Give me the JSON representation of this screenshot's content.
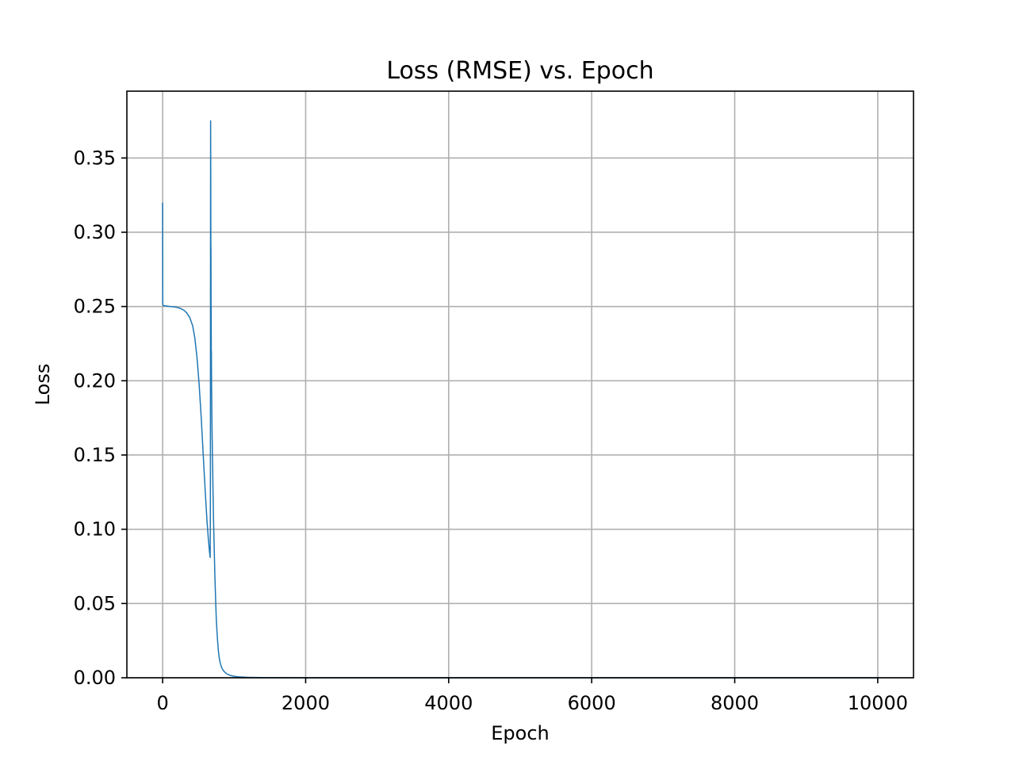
{
  "chart_data": {
    "type": "line",
    "title": "Loss (RMSE) vs. Epoch",
    "xlabel": "Epoch",
    "ylabel": "Loss",
    "xlim": [
      -500,
      10500
    ],
    "ylim": [
      0.0,
      0.395
    ],
    "xticks": [
      0,
      2000,
      4000,
      6000,
      8000,
      10000
    ],
    "xtick_labels": [
      "0",
      "2000",
      "4000",
      "6000",
      "8000",
      "10000"
    ],
    "yticks": [
      0.0,
      0.05,
      0.1,
      0.15,
      0.2,
      0.25,
      0.3,
      0.35
    ],
    "ytick_labels": [
      "0.00",
      "0.05",
      "0.10",
      "0.15",
      "0.20",
      "0.25",
      "0.30",
      "0.35"
    ],
    "grid": true,
    "series": [
      {
        "color": "#1f77b4",
        "x": [
          0,
          1,
          2,
          5,
          10,
          30,
          60,
          100,
          150,
          200,
          250,
          300,
          340,
          380,
          420,
          450,
          480,
          510,
          540,
          570,
          600,
          620,
          640,
          655,
          665,
          668,
          669,
          670,
          671,
          672,
          673,
          674,
          675,
          676,
          677,
          678,
          679,
          680,
          681,
          682,
          684,
          686,
          688,
          690,
          693,
          696,
          700,
          705,
          710,
          715,
          720,
          725,
          730,
          735,
          740,
          745,
          750,
          760,
          770,
          780,
          790,
          800,
          820,
          840,
          860,
          880,
          900,
          930,
          960,
          1000,
          1050,
          1100,
          1200,
          1300,
          1400,
          1500,
          1700,
          2000,
          2500,
          3000,
          4000,
          5000,
          6000,
          7000,
          8000,
          9000,
          10000
        ],
        "y": [
          0.32,
          0.28,
          0.252,
          0.251,
          0.2505,
          0.2505,
          0.2503,
          0.25,
          0.2498,
          0.2494,
          0.2487,
          0.2474,
          0.2455,
          0.2425,
          0.237,
          0.229,
          0.216,
          0.198,
          0.175,
          0.148,
          0.122,
          0.106,
          0.093,
          0.085,
          0.081,
          0.12,
          0.22,
          0.31,
          0.375,
          0.36,
          0.33,
          0.3,
          0.28,
          0.29,
          0.26,
          0.24,
          0.25,
          0.23,
          0.21,
          0.22,
          0.2,
          0.19,
          0.18,
          0.17,
          0.16,
          0.15,
          0.14,
          0.125,
          0.11,
          0.1,
          0.09,
          0.08,
          0.07,
          0.062,
          0.054,
          0.047,
          0.04,
          0.031,
          0.024,
          0.018,
          0.014,
          0.011,
          0.0075,
          0.0055,
          0.0042,
          0.0033,
          0.0026,
          0.0019,
          0.0014,
          0.001,
          0.0007,
          0.0005,
          0.0003,
          0.0002,
          0.00014,
          0.0001,
          6e-05,
          3e-05,
          1e-05,
          5e-06,
          2e-06,
          1e-06,
          5e-07,
          3e-07,
          2e-07,
          1e-07,
          1e-07
        ]
      }
    ]
  }
}
